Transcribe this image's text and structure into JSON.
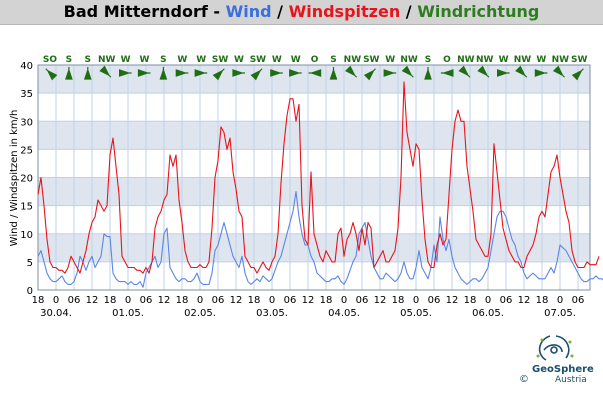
{
  "title": {
    "location": "Bad Mitterndorf",
    "sep1": " - ",
    "wind": "Wind",
    "sep2": " / ",
    "gusts": "Windspitzen",
    "sep3": " / ",
    "direction": "Windrichtung"
  },
  "logo": {
    "name": "GeoSphere",
    "sub": "Austria",
    "copyright": "©"
  },
  "colors": {
    "wind": "#5b86e5",
    "gusts": "#e8141c",
    "direction": "#1f6e14",
    "band": "#dfe5ef",
    "grid": "#bfd2ea"
  },
  "chart_data": {
    "type": "line",
    "ylabel": "Wind / Windspitzen in km/h",
    "ylim": [
      0,
      40
    ],
    "yticks": [
      "0",
      "5",
      "10",
      "15",
      "20",
      "25",
      "30",
      "35",
      "40"
    ],
    "xlim": [
      0,
      184
    ],
    "xticks": [
      "18",
      "0",
      "06",
      "12",
      "18",
      "0",
      "06",
      "12",
      "18",
      "0",
      "06",
      "12",
      "18",
      "0",
      "06",
      "12",
      "18",
      "0",
      "06",
      "12",
      "18",
      "0",
      "06",
      "12",
      "18",
      "0",
      "06",
      "12",
      "18",
      "0",
      "06"
    ],
    "date_labels": [
      {
        "label": "30.04.",
        "at": 6
      },
      {
        "label": "01.05.",
        "at": 30
      },
      {
        "label": "02.05.",
        "at": 54
      },
      {
        "label": "03.05.",
        "at": 78
      },
      {
        "label": "04.05.",
        "at": 102
      },
      {
        "label": "05.05.",
        "at": 126
      },
      {
        "label": "06.05.",
        "at": 150
      },
      {
        "label": "07.05.",
        "at": 174
      }
    ],
    "direction_labels": [
      "SO",
      "S",
      "S",
      "NW",
      "W",
      "W",
      "S",
      "W",
      "W",
      "SW",
      "W",
      "SW",
      "W",
      "W",
      "O",
      "S",
      "NW",
      "SW",
      "W",
      "NW",
      "S",
      "O",
      "NW",
      "NW",
      "W",
      "NW",
      "W",
      "NW",
      "SW"
    ],
    "direction_arrows": [
      "SO",
      "S",
      "S",
      "NW",
      "W",
      "W",
      "S",
      "W",
      "W",
      "SW",
      "W",
      "SW",
      "W",
      "W",
      "O",
      "S",
      "NW",
      "SW",
      "W",
      "NW",
      "S",
      "O",
      "NW",
      "NW",
      "W",
      "NW",
      "W",
      "NW",
      "SW"
    ],
    "series": [
      {
        "name": "Wind",
        "color": "#5b86e5",
        "values": [
          6,
          7,
          5,
          3,
          2,
          1.5,
          1.5,
          2,
          2.5,
          1.5,
          1,
          1,
          1.5,
          3,
          6,
          5,
          3.5,
          5,
          6,
          4,
          5,
          6,
          10,
          9.5,
          9.5,
          3,
          2,
          1.5,
          1.5,
          1.5,
          1,
          1.5,
          1,
          1,
          1.5,
          0.5,
          3,
          4,
          5,
          6,
          4,
          5,
          10,
          11,
          4,
          3,
          2,
          1.5,
          2,
          2,
          1.5,
          1.5,
          2,
          3,
          1.5,
          1,
          1,
          1,
          3,
          7,
          8,
          10,
          12,
          10,
          8,
          6,
          5,
          4,
          6,
          3,
          1.5,
          1,
          1.5,
          2,
          1.5,
          2.5,
          2,
          1.5,
          2,
          3.5,
          5,
          6,
          8,
          10,
          12,
          14,
          17.5,
          13,
          10,
          8,
          8,
          6,
          5,
          3,
          2.5,
          2,
          1.5,
          1.5,
          2,
          2,
          2.5,
          1.5,
          1,
          2,
          3.5,
          5,
          6,
          10,
          11,
          12,
          9,
          6,
          4,
          3,
          2,
          2,
          3,
          2.5,
          2,
          1.5,
          2,
          3,
          5,
          3,
          2,
          2,
          4,
          7,
          4,
          3,
          2,
          4,
          8,
          5,
          13,
          9,
          7,
          9,
          6,
          4,
          3,
          2,
          1.5,
          1,
          1.5,
          2,
          2,
          1.5,
          2,
          3,
          4,
          7,
          10,
          13,
          14,
          14,
          13,
          11,
          9,
          8,
          6,
          5,
          3,
          2,
          2.5,
          3,
          2.5,
          2,
          2,
          2,
          3,
          4,
          3,
          5,
          8,
          7.5,
          7,
          6,
          5,
          4,
          3,
          2,
          1.5,
          1.5,
          2,
          2,
          2.5,
          2,
          2,
          1.5,
          2,
          2,
          1.5
        ]
      },
      {
        "name": "Windspitzen",
        "color": "#e8141c",
        "values": [
          17,
          20,
          15,
          9,
          5,
          4,
          4,
          3.5,
          3.5,
          3,
          4,
          6,
          5,
          4,
          3,
          5,
          7,
          10,
          12,
          13,
          16,
          15,
          14,
          15,
          24,
          27,
          22,
          17,
          6,
          5,
          4,
          4,
          4,
          3.5,
          3.5,
          3,
          4,
          3,
          5,
          11,
          13,
          14,
          16,
          17,
          24,
          22,
          24,
          16,
          12,
          7,
          5,
          4,
          4,
          4,
          4.5,
          4,
          4,
          5,
          11,
          20,
          23,
          29,
          28,
          25,
          27,
          21,
          18,
          14,
          13,
          6,
          5,
          4,
          4,
          3,
          4,
          5,
          4,
          3.5,
          5,
          6,
          10,
          19,
          26,
          31,
          34,
          34,
          30,
          33,
          15,
          9,
          8,
          21,
          10,
          8,
          6,
          5,
          7,
          6,
          5,
          5,
          10,
          11,
          6,
          9,
          10,
          12,
          10,
          7,
          11,
          8,
          12,
          11,
          4,
          5,
          6,
          7,
          5,
          5,
          6,
          7,
          11,
          20,
          37,
          28,
          25,
          22,
          26,
          25,
          16,
          9,
          5,
          4,
          4,
          8,
          10,
          8,
          9,
          17,
          25,
          30,
          32,
          30,
          30,
          22,
          18,
          14,
          9,
          8,
          7,
          6,
          6,
          10,
          26,
          21,
          16,
          11,
          9,
          7,
          6,
          5,
          5,
          4,
          4,
          6,
          7,
          8,
          10,
          13,
          14,
          13,
          17,
          21,
          22,
          24,
          20,
          17,
          14,
          12,
          7,
          5,
          4,
          4,
          4,
          5,
          4.5,
          4.5,
          4.5,
          6
        ]
      }
    ]
  }
}
